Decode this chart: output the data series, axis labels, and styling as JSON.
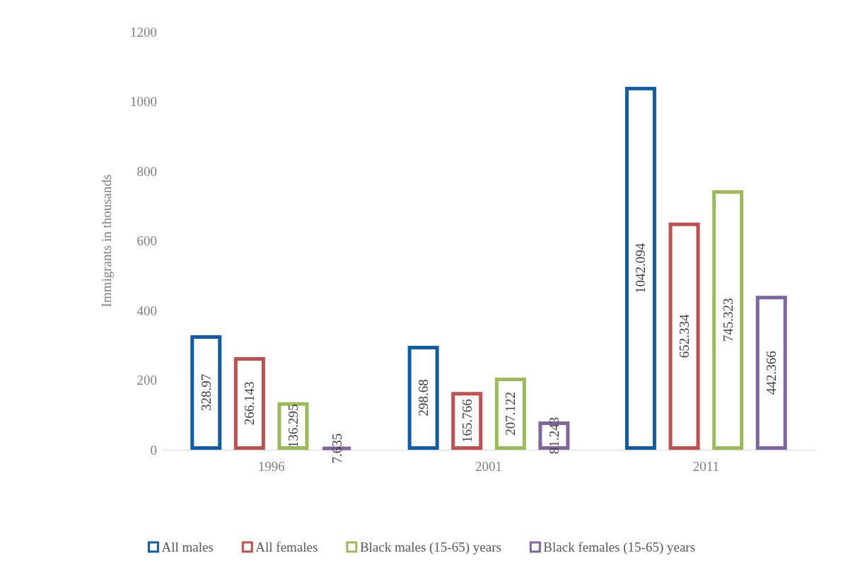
{
  "chart_data": {
    "type": "bar",
    "ylabel": "Immigrants in thousands",
    "categories": [
      "1996",
      "2001",
      "2011"
    ],
    "series": [
      {
        "name": "All males",
        "color": "#0f5ba6",
        "values": [
          328.97,
          298.68,
          1042.094
        ]
      },
      {
        "name": "All females",
        "color": "#c0504d",
        "values": [
          266.143,
          165.766,
          652.334
        ]
      },
      {
        "name": "Black males (15-65) years",
        "color": "#9bbb59",
        "values": [
          136.295,
          207.122,
          745.323
        ]
      },
      {
        "name": "Black females (15-65) years",
        "color": "#8064a2",
        "values": [
          7.635,
          81.243,
          442.366
        ]
      }
    ],
    "ylim": [
      0,
      1200
    ],
    "yticks": [
      0,
      200,
      400,
      600,
      800,
      1000,
      1200
    ],
    "grid": false,
    "legend": "bottom",
    "data_labels": true
  }
}
